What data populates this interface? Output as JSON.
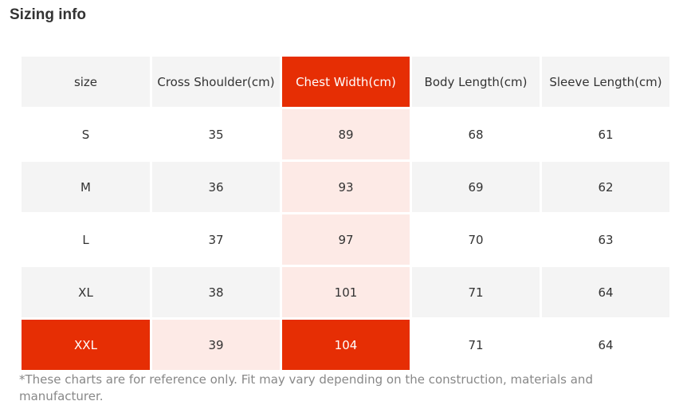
{
  "title": "Sizing info",
  "colors": {
    "highlight": "#e62e04",
    "highlight_light": "#fdeae6",
    "row_gray": "#f4f4f4"
  },
  "table": {
    "headers": [
      "size",
      "Cross Shoulder(cm)",
      "Chest Width(cm)",
      "Body Length(cm)",
      "Sleeve Length(cm)"
    ],
    "rows": [
      [
        "S",
        "35",
        "89",
        "68",
        "61"
      ],
      [
        "M",
        "36",
        "93",
        "69",
        "62"
      ],
      [
        "L",
        "37",
        "97",
        "70",
        "63"
      ],
      [
        "XL",
        "38",
        "101",
        "71",
        "64"
      ],
      [
        "XXL",
        "39",
        "104",
        "71",
        "64"
      ]
    ]
  },
  "note": "*These charts are for reference only. Fit may vary depending on the construction, materials and manufacturer."
}
